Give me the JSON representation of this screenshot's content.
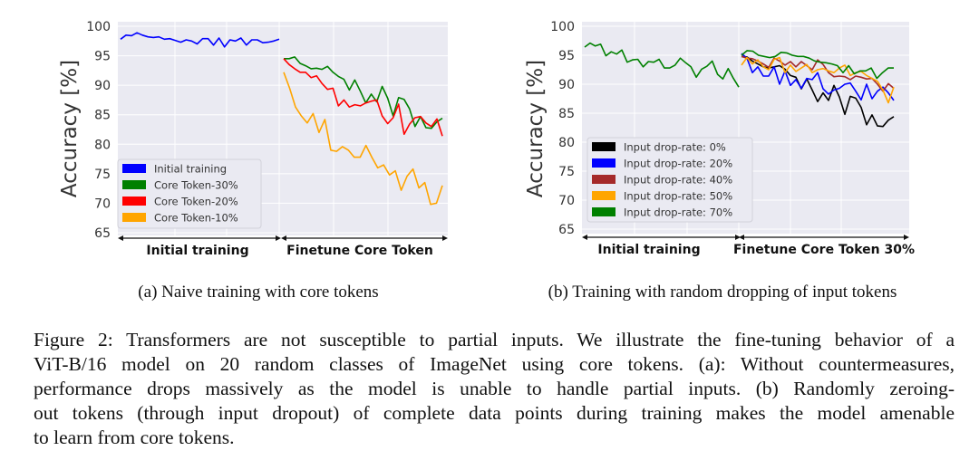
{
  "chart_data": [
    {
      "type": "line",
      "title": "",
      "ylabel": "Accuracy  [%]",
      "ylim": [
        65,
        100
      ],
      "yticks": [
        "65",
        "70",
        "75",
        "80",
        "85",
        "90",
        "95",
        "100"
      ],
      "grid": true,
      "legend_placement": "lower-left",
      "phases": [
        "Initial training",
        "Finetune Core Token"
      ],
      "series": [
        {
          "name": "Initial training",
          "phase": 0,
          "color": "#0000ff",
          "values": [
            97.8,
            98.5,
            98.4,
            98.9,
            98.5,
            98.2,
            98.1,
            98.2,
            97.8,
            97.9,
            97.6,
            97.3,
            97.7,
            97.5,
            97.0,
            97.9,
            97.9,
            96.8,
            98.0,
            96.5,
            97.7,
            97.5,
            98.0,
            96.8,
            97.7,
            97.7,
            97.2,
            97.3,
            97.5,
            97.8
          ]
        },
        {
          "name": "Core Token-30%",
          "phase": 1,
          "color": "#008000",
          "values": [
            94.5,
            94.5,
            94.8,
            93.7,
            93.3,
            92.8,
            92.9,
            92.7,
            93.2,
            92.2,
            91.5,
            91.0,
            89.2,
            90.9,
            89.0,
            87.0,
            88.5,
            87.2,
            89.8,
            87.8,
            84.8,
            87.9,
            87.6,
            86.0,
            83.0,
            84.7,
            82.8,
            82.7,
            83.8,
            84.4
          ]
        },
        {
          "name": "Core Token-20%",
          "phase": 1,
          "color": "#ff0000",
          "values": [
            94.5,
            93.5,
            92.8,
            92.2,
            92.2,
            91.3,
            91.6,
            90.3,
            89.3,
            89.5,
            86.5,
            87.5,
            86.3,
            86.7,
            86.5,
            87.0,
            87.3,
            87.5,
            84.8,
            83.5,
            84.5,
            86.8,
            81.7,
            83.4,
            84.5,
            84.7,
            83.6,
            83.0,
            84.3,
            81.4
          ]
        },
        {
          "name": "Core Token-10%",
          "phase": 1,
          "color": "#ffa500",
          "values": [
            92.2,
            89.5,
            86.3,
            84.8,
            83.6,
            85.2,
            82.0,
            84.2,
            79.0,
            78.8,
            79.6,
            79.0,
            77.8,
            77.8,
            79.8,
            77.8,
            76.0,
            76.5,
            74.8,
            75.5,
            72.2,
            74.6,
            75.8,
            72.6,
            73.5,
            69.8,
            70.0,
            73.0
          ]
        }
      ],
      "legend_order": [
        0,
        1,
        2,
        3
      ]
    },
    {
      "type": "line",
      "title": "",
      "ylabel": "Accuracy [%]",
      "ylim": [
        65,
        100
      ],
      "yticks": [
        "65",
        "70",
        "75",
        "80",
        "85",
        "90",
        "95",
        "100"
      ],
      "grid": true,
      "legend_placement": "lower-left",
      "phases": [
        "Initial training",
        "Finetune Core Token 30%"
      ],
      "series": [
        {
          "name": "Input drop-rate: 0%",
          "phase": 1,
          "color": "#000000",
          "values": [
            94.8,
            94.7,
            94.0,
            93.5,
            93.0,
            92.8,
            93.0,
            93.2,
            92.6,
            91.5,
            91.2,
            89.2,
            90.9,
            89.0,
            87.0,
            88.5,
            87.2,
            89.8,
            87.8,
            84.8,
            87.9,
            87.6,
            86.0,
            83.0,
            84.7,
            82.8,
            82.7,
            83.8,
            84.4
          ]
        },
        {
          "name": "Input drop-rate: 20%",
          "phase": 1,
          "color": "#0000ff",
          "values": [
            95.3,
            94.5,
            92.0,
            93.0,
            91.4,
            91.4,
            93.0,
            90.0,
            92.3,
            89.8,
            90.8,
            89.3,
            91.0,
            90.8,
            92.0,
            89.2,
            88.3,
            89.0,
            89.3,
            90.0,
            90.2,
            88.8,
            87.3,
            90.0,
            87.5,
            88.8,
            89.5,
            88.5,
            87.2
          ]
        },
        {
          "name": "Input drop-rate: 40%",
          "phase": 1,
          "color": "#a52a2a",
          "values": [
            94.8,
            94.5,
            94.4,
            94.0,
            93.5,
            92.9,
            94.5,
            94.0,
            93.3,
            93.9,
            93.0,
            93.9,
            93.2,
            92.5,
            94.2,
            93.4,
            92.0,
            91.3,
            91.4,
            91.3,
            90.8,
            91.4,
            91.2,
            90.9,
            91.0,
            90.0,
            88.8,
            90.1,
            89.3
          ]
        },
        {
          "name": "Input drop-rate: 50%",
          "phase": 1,
          "color": "#ffa500",
          "values": [
            93.3,
            94.6,
            93.5,
            94.2,
            93.0,
            92.5,
            94.3,
            94.6,
            92.0,
            93.3,
            92.2,
            92.8,
            93.4,
            92.0,
            92.5,
            92.7,
            92.3,
            92.0,
            92.8,
            93.3,
            91.5,
            92.0,
            92.2,
            91.5,
            91.0,
            90.5,
            89.0,
            86.8,
            89.5
          ]
        },
        {
          "name": "Input drop-rate: 70%",
          "phase": 1,
          "color": "#008000",
          "values": [
            95.0,
            95.8,
            95.7,
            95.0,
            94.8,
            94.6,
            94.8,
            95.5,
            95.4,
            95.0,
            94.8,
            94.8,
            94.5,
            94.0,
            93.8,
            93.7,
            93.5,
            93.2,
            92.0,
            93.2,
            91.8,
            92.3,
            92.3,
            92.8,
            91.0,
            92.0,
            92.8,
            92.8
          ]
        },
        {
          "name": "",
          "phase": 0,
          "color": "#008000",
          "values": [
            96.4,
            97.1,
            96.6,
            96.9,
            94.9,
            95.6,
            95.2,
            95.9,
            93.8,
            94.2,
            94.3,
            93.0,
            93.9,
            93.8,
            94.3,
            92.8,
            92.8,
            93.3,
            94.5,
            93.7,
            93.0,
            91.2,
            92.6,
            93.1,
            94.0,
            91.7,
            90.9,
            92.7,
            91.0,
            89.5
          ]
        }
      ],
      "legend_order": [
        0,
        1,
        2,
        3,
        4
      ]
    }
  ],
  "subcaptions": [
    "(a) Naive training with core tokens",
    "(b) Training with random dropping of input tokens"
  ],
  "caption_lines": [
    "Figure 2: Transformers are not susceptible to partial inputs. We illustrate the fine-tuning behavior of a",
    "ViT-B/16 model on 20 random classes of ImageNet using core tokens. (a): Without countermeasures,",
    "performance drops massively as the model is unable to handle partial inputs. (b) Randomly zeroing-",
    "out tokens (through input dropout) of complete data points during training makes the model amenable",
    "to learn from core tokens."
  ]
}
